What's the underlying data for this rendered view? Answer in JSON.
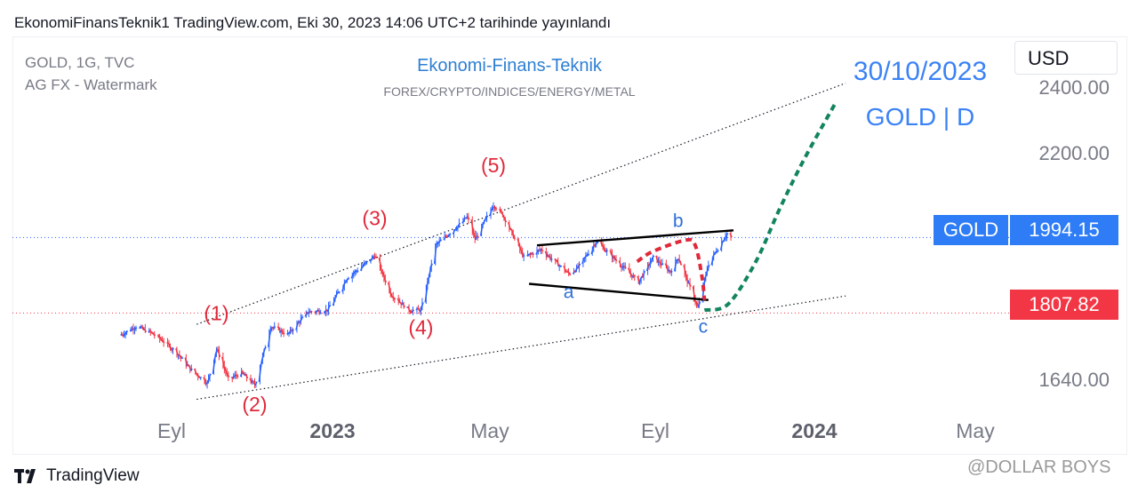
{
  "header": {
    "text": "EkonomiFinansTeknik1 TradingView.com, Eki 30, 2023 14:06 UTC+2 tarihinde yayınlandı"
  },
  "symbol": {
    "line1": "GOLD, 1G, TVC",
    "line2": "AG FX - Watermark"
  },
  "brand": {
    "title": "Ekonomi-Finans-Teknik",
    "subtitle": "FOREX/CRYPTO/INDICES/ENERGY/METAL"
  },
  "overlay": {
    "date": "30/10/2023",
    "label": "GOLD | D"
  },
  "currency": "USD",
  "price_badges": {
    "symbol": "GOLD",
    "current": "1994.15",
    "marker": "1807.82"
  },
  "colors": {
    "up": "#2962ff",
    "down": "#f23645",
    "wave_red": "#e0293b",
    "wave_blue": "#2e6fd8",
    "forecast_green": "#12845f",
    "badge_blue": "#2e7df6",
    "badge_red": "#f23645"
  },
  "footer": {
    "brand": "TradingView",
    "watermark": "@DOLLAR BOYS"
  },
  "chart_data": {
    "type": "candlestick",
    "x_tick_labels": [
      "Eyl",
      "2023",
      "May",
      "Eyl",
      "2024",
      "May"
    ],
    "y_tick_labels": [
      "2400.00",
      "2200.00",
      "1640.00"
    ],
    "current_price": 1994.15,
    "marked_price": 1807.82,
    "price_series": [
      [
        "2022-07-25",
        1755
      ],
      [
        "2022-08-05",
        1775
      ],
      [
        "2022-08-16",
        1760
      ],
      [
        "2022-08-25",
        1740
      ],
      [
        "2022-09-05",
        1710
      ],
      [
        "2022-09-15",
        1670
      ],
      [
        "2022-09-28",
        1635
      ],
      [
        "2022-10-05",
        1720
      ],
      [
        "2022-10-14",
        1645
      ],
      [
        "2022-10-24",
        1660
      ],
      [
        "2022-11-03",
        1630
      ],
      [
        "2022-11-15",
        1775
      ],
      [
        "2022-11-28",
        1755
      ],
      [
        "2022-12-13",
        1810
      ],
      [
        "2022-12-28",
        1815
      ],
      [
        "2023-01-12",
        1895
      ],
      [
        "2023-01-26",
        1930
      ],
      [
        "2023-02-02",
        1950
      ],
      [
        "2023-02-14",
        1855
      ],
      [
        "2023-02-28",
        1815
      ],
      [
        "2023-03-09",
        1815
      ],
      [
        "2023-03-20",
        1975
      ],
      [
        "2023-04-05",
        2020
      ],
      [
        "2023-04-13",
        2045
      ],
      [
        "2023-04-19",
        1990
      ],
      [
        "2023-05-03",
        2075
      ],
      [
        "2023-05-10",
        2050
      ],
      [
        "2023-05-26",
        1945
      ],
      [
        "2023-06-08",
        1965
      ],
      [
        "2023-06-29",
        1905
      ],
      [
        "2023-07-06",
        1920
      ],
      [
        "2023-07-20",
        1985
      ],
      [
        "2023-08-08",
        1925
      ],
      [
        "2023-08-21",
        1885
      ],
      [
        "2023-09-01",
        1945
      ],
      [
        "2023-09-14",
        1910
      ],
      [
        "2023-09-20",
        1945
      ],
      [
        "2023-10-05",
        1820
      ],
      [
        "2023-10-13",
        1930
      ],
      [
        "2023-10-27",
        2005
      ],
      [
        "2023-10-30",
        1994
      ]
    ],
    "wave_labels": [
      {
        "text": "(1)",
        "date": "2022-10-05",
        "price": 1790
      },
      {
        "text": "(2)",
        "date": "2022-11-03",
        "price": 1565
      },
      {
        "text": "(3)",
        "date": "2023-02-02",
        "price": 2025
      },
      {
        "text": "(4)",
        "date": "2023-03-09",
        "price": 1755
      },
      {
        "text": "(5)",
        "date": "2023-05-03",
        "price": 2155
      },
      {
        "text": "a",
        "date": "2023-06-29",
        "price": 1845
      },
      {
        "text": "b",
        "date": "2023-09-20",
        "price": 2020
      },
      {
        "text": "c",
        "date": "2023-10-09",
        "price": 1760
      }
    ],
    "channel_lines": [
      {
        "from": [
          "2022-09-20",
          1780
        ],
        "to": [
          "2024-01-25",
          2375
        ]
      },
      {
        "from": [
          "2022-09-20",
          1595
        ],
        "to": [
          "2024-01-25",
          1850
        ]
      }
    ],
    "triangle_lines": [
      {
        "from": [
          "2023-06-05",
          1975
        ],
        "to": [
          "2023-11-01",
          2012
        ]
      },
      {
        "from": [
          "2023-05-30",
          1880
        ],
        "to": [
          "2023-10-13",
          1840
        ]
      }
    ],
    "red_path": [
      [
        "2023-08-20",
        1935
      ],
      [
        "2023-09-01",
        1960
      ],
      [
        "2023-09-26",
        1988
      ],
      [
        "2023-10-03",
        1975
      ],
      [
        "2023-10-08",
        1900
      ],
      [
        "2023-10-10",
        1840
      ]
    ],
    "green_path": [
      [
        "2023-10-10",
        1815
      ],
      [
        "2023-10-28",
        1830
      ],
      [
        "2023-11-18",
        1935
      ],
      [
        "2023-12-06",
        2065
      ],
      [
        "2023-12-25",
        2190
      ],
      [
        "2024-01-18",
        2330
      ]
    ]
  }
}
